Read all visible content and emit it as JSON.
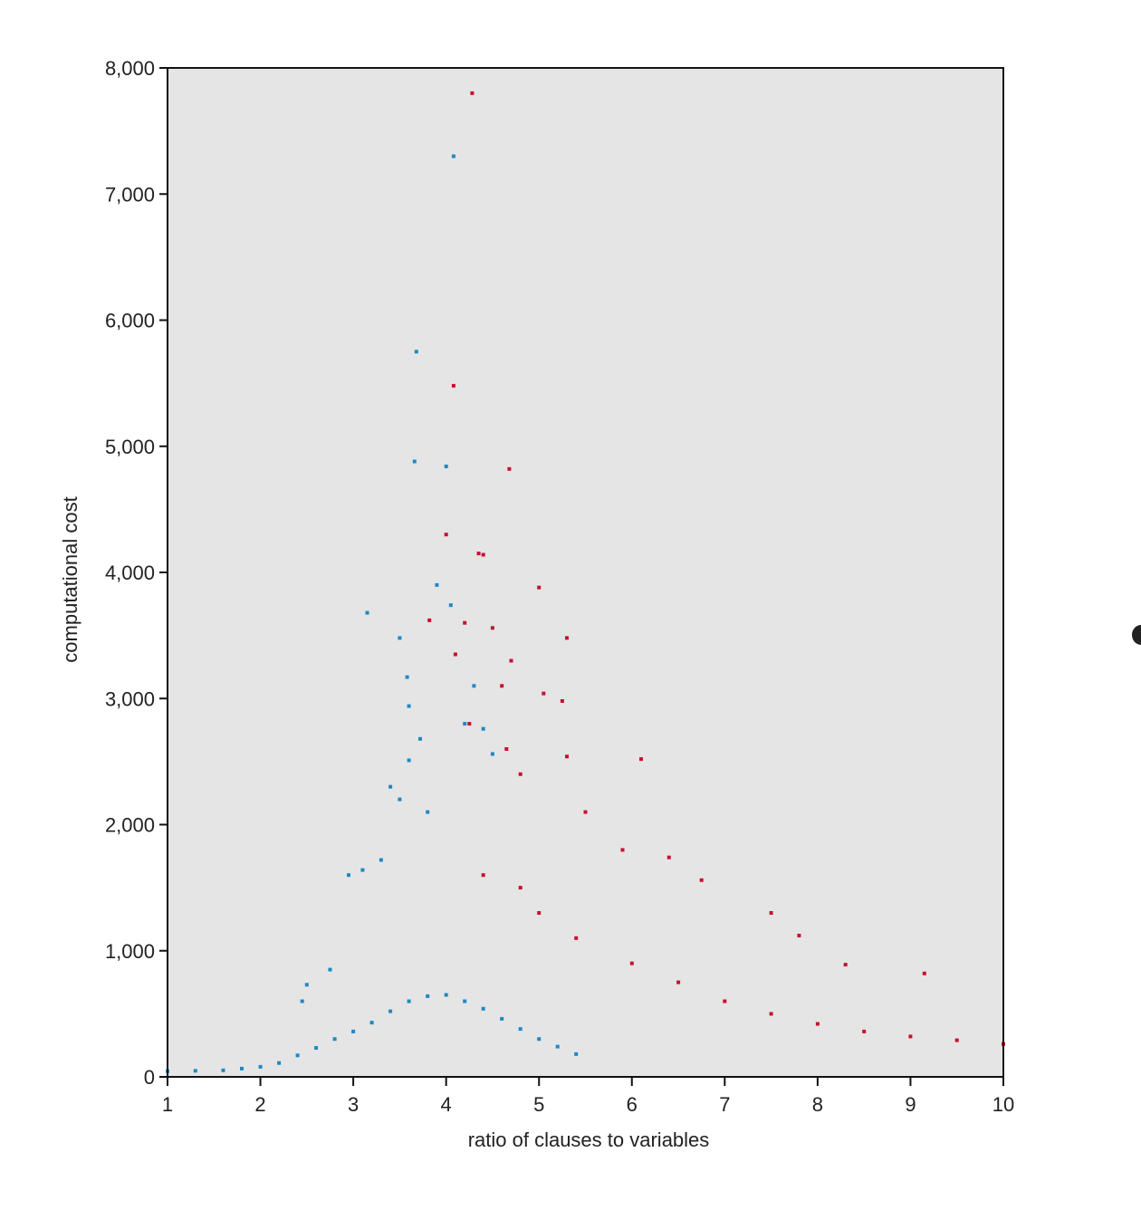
{
  "chart_data": {
    "type": "scatter",
    "title": "",
    "xlabel": "ratio of clauses to variables",
    "ylabel": "computational cost",
    "xlim": [
      1,
      10
    ],
    "ylim": [
      0,
      8000
    ],
    "x_ticks": [
      1,
      2,
      3,
      4,
      5,
      6,
      7,
      8,
      9,
      10
    ],
    "y_ticks": [
      0,
      1000,
      2000,
      3000,
      4000,
      5000,
      6000,
      7000,
      8000
    ],
    "x_tick_labels": [
      "1",
      "2",
      "3",
      "4",
      "5",
      "6",
      "7",
      "8",
      "9",
      "10"
    ],
    "y_tick_labels": [
      "0",
      "1,000",
      "2,000",
      "3,000",
      "4,000",
      "5,000",
      "6,000",
      "7,000",
      "8,000"
    ],
    "plot_background": "#e5e5e5",
    "grid": false,
    "legend": "none",
    "series": [
      {
        "color": "#1f88c4",
        "points": [
          [
            4.08,
            7300
          ],
          [
            3.68,
            5750
          ],
          [
            3.66,
            4880
          ],
          [
            4.0,
            4840
          ],
          [
            3.15,
            3680
          ],
          [
            3.5,
            3480
          ],
          [
            3.58,
            3170
          ],
          [
            3.6,
            2940
          ],
          [
            3.72,
            2680
          ],
          [
            3.6,
            2510
          ],
          [
            3.4,
            2300
          ],
          [
            3.5,
            2200
          ],
          [
            3.3,
            1720
          ],
          [
            2.95,
            1600
          ],
          [
            3.1,
            1640
          ],
          [
            3.9,
            3900
          ],
          [
            4.05,
            3740
          ],
          [
            4.3,
            3100
          ],
          [
            4.4,
            2760
          ],
          [
            4.5,
            2560
          ],
          [
            2.5,
            730
          ],
          [
            2.45,
            600
          ],
          [
            2.75,
            850
          ],
          [
            3.8,
            2100
          ],
          [
            4.2,
            2800
          ],
          [
            1.0,
            45
          ],
          [
            1.3,
            48
          ],
          [
            1.6,
            52
          ],
          [
            1.8,
            65
          ],
          [
            2.0,
            80
          ],
          [
            2.2,
            110
          ],
          [
            2.4,
            170
          ],
          [
            2.6,
            230
          ],
          [
            2.8,
            300
          ],
          [
            3.0,
            360
          ],
          [
            3.2,
            430
          ],
          [
            3.4,
            520
          ],
          [
            3.6,
            600
          ],
          [
            3.8,
            640
          ],
          [
            4.0,
            650
          ],
          [
            4.2,
            600
          ],
          [
            4.4,
            540
          ],
          [
            4.6,
            460
          ],
          [
            4.8,
            380
          ],
          [
            5.0,
            300
          ],
          [
            5.2,
            240
          ],
          [
            5.4,
            180
          ]
        ]
      },
      {
        "color": "#c8102e",
        "points": [
          [
            4.28,
            7800
          ],
          [
            4.08,
            5480
          ],
          [
            4.68,
            4820
          ],
          [
            4.0,
            4300
          ],
          [
            4.35,
            4150
          ],
          [
            4.4,
            4140
          ],
          [
            5.0,
            3880
          ],
          [
            5.3,
            3480
          ],
          [
            3.82,
            3620
          ],
          [
            4.2,
            3600
          ],
          [
            4.5,
            3560
          ],
          [
            4.1,
            3350
          ],
          [
            4.7,
            3300
          ],
          [
            4.6,
            3100
          ],
          [
            5.05,
            3040
          ],
          [
            5.25,
            2980
          ],
          [
            4.25,
            2800
          ],
          [
            4.65,
            2600
          ],
          [
            6.1,
            2520
          ],
          [
            5.3,
            2540
          ],
          [
            6.4,
            1740
          ],
          [
            6.75,
            1560
          ],
          [
            7.5,
            1300
          ],
          [
            7.8,
            1120
          ],
          [
            8.3,
            890
          ],
          [
            9.15,
            820
          ],
          [
            4.8,
            2400
          ],
          [
            5.5,
            2100
          ],
          [
            5.9,
            1800
          ],
          [
            4.4,
            1600
          ],
          [
            4.8,
            1500
          ],
          [
            5.0,
            1300
          ],
          [
            5.4,
            1100
          ],
          [
            6.0,
            900
          ],
          [
            6.5,
            750
          ],
          [
            7.0,
            600
          ],
          [
            7.5,
            500
          ],
          [
            8.0,
            420
          ],
          [
            8.5,
            360
          ],
          [
            9.0,
            320
          ],
          [
            9.5,
            290
          ],
          [
            10.0,
            260
          ]
        ]
      }
    ]
  }
}
